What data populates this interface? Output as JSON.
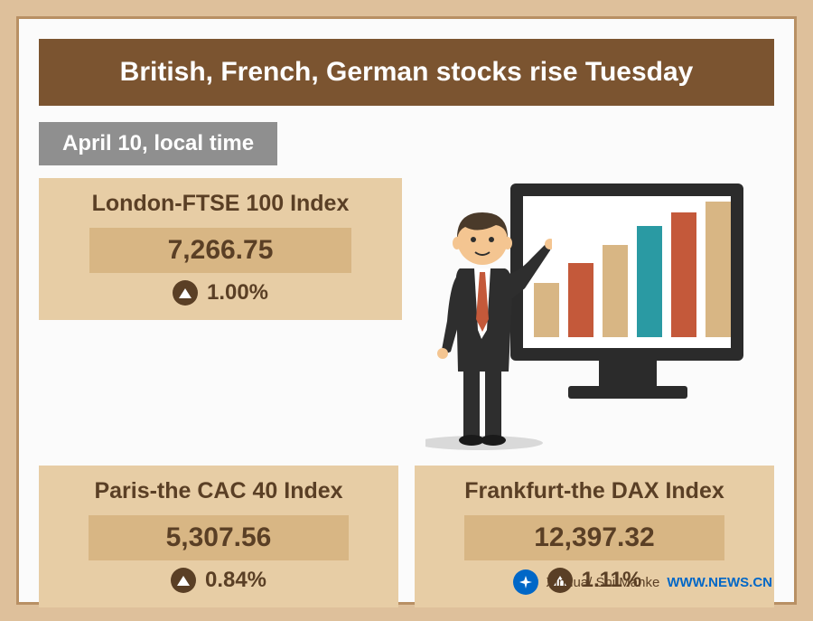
{
  "colors": {
    "page_bg": "#dec09b",
    "panel_bg": "#fbfbfb",
    "header_bg": "#7b5430",
    "header_text": "#ffffff",
    "date_bg": "#8f8f8f",
    "date_text": "#ffffff",
    "card_bg": "#e7cda5",
    "card_title": "#5a3f25",
    "value_box_bg": "#d8b684",
    "value_text": "#5a3f25",
    "change_text": "#5a3f25",
    "tri_circle_bg": "#5a3f25",
    "tri_fill": "#ffffff",
    "inner_border": "#b89064",
    "url": "#0067c7",
    "credit": "#5a3f25",
    "logo_bg": "#0067c7",
    "logo_fg": "#ffffff",
    "man_suit": "#2e2e2e",
    "man_skin": "#f4c591",
    "man_hair": "#4a3a2a",
    "man_tie": "#c4593a",
    "man_shirt": "#ffffff"
  },
  "typography": {
    "header_fontsize": 30,
    "date_fontsize": 24,
    "card_title_fontsize": 25,
    "value_fontsize": 30,
    "change_fontsize": 24,
    "footer_fontsize": 15
  },
  "header": {
    "title": "British, French, German stocks rise Tuesday"
  },
  "date_label": "April 10, local time",
  "indices": [
    {
      "name": "London-FTSE 100 Index",
      "value": "7,266.75",
      "change": "1.00%",
      "direction": "up"
    },
    {
      "name": "Paris-the CAC 40 Index",
      "value": "5,307.56",
      "change": "0.84%",
      "direction": "up"
    },
    {
      "name": "Frankfurt-the DAX Index",
      "value": "12,397.32",
      "change": "1.11%",
      "direction": "up"
    }
  ],
  "footer": {
    "credit": "Xinhua/ Shi Manke",
    "url": "WWW.NEWS.CN"
  },
  "illustration": {
    "bars": [
      {
        "height_pct": 40,
        "color": "#d8b684"
      },
      {
        "height_pct": 55,
        "color": "#c4593a"
      },
      {
        "height_pct": 68,
        "color": "#d8b684"
      },
      {
        "height_pct": 82,
        "color": "#2a9aa3"
      },
      {
        "height_pct": 92,
        "color": "#c4593a"
      },
      {
        "height_pct": 100,
        "color": "#d8b684"
      }
    ],
    "monitor_frame": "#2b2b2b",
    "monitor_screen": "#ffffff"
  }
}
